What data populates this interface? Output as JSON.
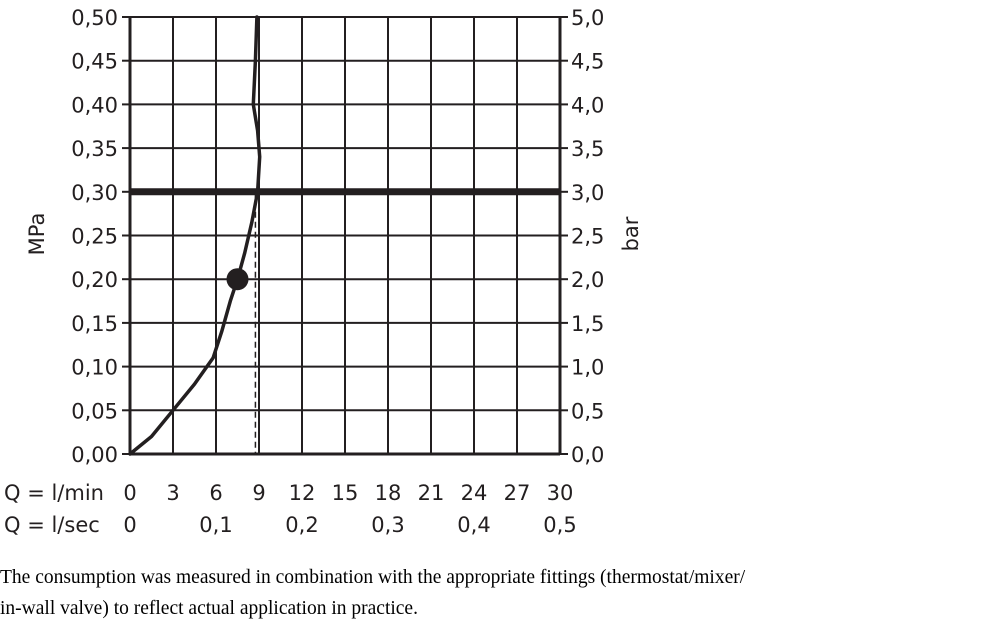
{
  "chart_data": {
    "type": "line",
    "ylabel_left": "MPa",
    "ylabel_right": "bar",
    "ylim": [
      0,
      0.5
    ],
    "xlim": [
      0,
      30
    ],
    "grid": true,
    "y_ticks": [
      "0,00",
      "0,05",
      "0,10",
      "0,15",
      "0,20",
      "0,25",
      "0,30",
      "0,35",
      "0,40",
      "0,45",
      "0,50"
    ],
    "y_ticks_right": [
      "0,0",
      "0,5",
      "1,0",
      "1,5",
      "2,0",
      "2,5",
      "3,0",
      "3,5",
      "4,0",
      "4,5",
      "5,0"
    ],
    "x_label_lmin": "Q = l/min",
    "x_ticks_lmin": [
      "0",
      "3",
      "6",
      "9",
      "12",
      "15",
      "18",
      "21",
      "24",
      "27",
      "30"
    ],
    "x_label_lsec": "Q = l/sec",
    "x_ticks_lsec": [
      {
        "value": 0,
        "label": "0"
      },
      {
        "value": 6,
        "label": "0,1"
      },
      {
        "value": 12,
        "label": "0,2"
      },
      {
        "value": 18,
        "label": "0,3"
      },
      {
        "value": 24,
        "label": "0,4"
      },
      {
        "value": 30,
        "label": "0,5"
      }
    ],
    "series": [
      {
        "x": [
          0,
          1.5,
          3,
          4.5,
          5.8,
          6.4,
          7.0,
          7.5,
          8.0,
          8.5,
          8.9,
          9.05,
          8.9,
          8.6,
          8.75,
          8.85
        ],
        "y": [
          0,
          0.02,
          0.05,
          0.08,
          0.11,
          0.14,
          0.175,
          0.2,
          0.23,
          0.265,
          0.3,
          0.34,
          0.37,
          0.4,
          0.45,
          0.5
        ]
      }
    ],
    "reference_line_y": 0.3,
    "marker_point": {
      "x": 7.5,
      "y": 0.2
    },
    "dashed_line_x": 8.75
  },
  "caption": {
    "line1": "The consumption was measured in combination with the appropriate fittings (thermostat/mixer/",
    "line2": "in-wall valve) to reflect actual application in practice."
  },
  "colors": {
    "ink": "#231f20",
    "background": "#ffffff"
  }
}
